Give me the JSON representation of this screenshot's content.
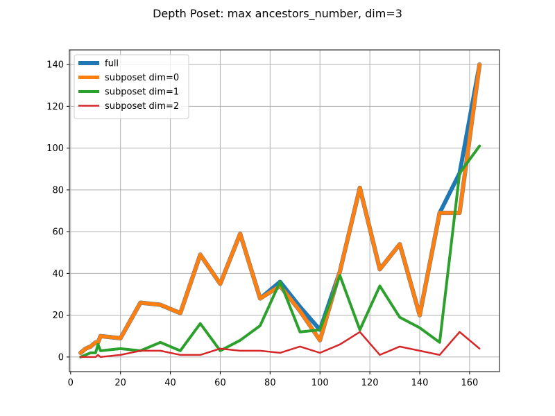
{
  "chart_data": {
    "type": "line",
    "title": "Depth Poset: max ancestors_number, dim=3",
    "xlabel": "",
    "ylabel": "",
    "xlim": [
      -0.5,
      172
    ],
    "ylim": [
      -7,
      147
    ],
    "xticks": [
      0,
      20,
      40,
      60,
      80,
      100,
      120,
      140,
      160
    ],
    "yticks": [
      0,
      20,
      40,
      60,
      80,
      100,
      120,
      140
    ],
    "grid": true,
    "legend_position": "top-left",
    "series": [
      {
        "name": "full",
        "color": "#1f77b4",
        "x": [
          4,
          6,
          8,
          10,
          11,
          12,
          20,
          28,
          36,
          44,
          52,
          60,
          68,
          76,
          84,
          92,
          100,
          108,
          116,
          124,
          132,
          140,
          148,
          156,
          164
        ],
        "y": [
          2,
          4,
          5,
          7,
          7,
          10,
          9,
          26,
          25,
          21,
          49,
          35,
          59,
          28,
          36,
          24,
          13,
          41,
          81,
          42,
          54,
          20,
          69,
          88,
          140
        ]
      },
      {
        "name": "subposet dim=0",
        "color": "#ff7f0e",
        "x": [
          4,
          6,
          8,
          10,
          11,
          12,
          20,
          28,
          36,
          44,
          52,
          60,
          68,
          76,
          84,
          92,
          100,
          108,
          116,
          124,
          132,
          140,
          148,
          156,
          164
        ],
        "y": [
          2,
          4,
          5,
          7,
          7,
          10,
          9,
          26,
          25,
          21,
          49,
          35,
          59,
          28,
          34,
          22,
          8,
          41,
          81,
          42,
          54,
          20,
          69,
          69,
          140
        ]
      },
      {
        "name": "subposet dim=1",
        "color": "#2ca02c",
        "x": [
          4,
          6,
          8,
          10,
          11,
          12,
          20,
          28,
          36,
          44,
          52,
          60,
          68,
          76,
          84,
          92,
          100,
          108,
          116,
          124,
          132,
          140,
          148,
          156,
          164
        ],
        "y": [
          0,
          1,
          2,
          2,
          6,
          3,
          4,
          3,
          7,
          3,
          16,
          3,
          8,
          15,
          36,
          12,
          13,
          39,
          13,
          34,
          19,
          14,
          7,
          88,
          101
        ]
      },
      {
        "name": "subposet dim=2",
        "color": "#d62728",
        "x": [
          4,
          6,
          8,
          10,
          11,
          12,
          20,
          28,
          36,
          44,
          52,
          60,
          68,
          76,
          84,
          92,
          100,
          108,
          116,
          124,
          132,
          140,
          148,
          156,
          164
        ],
        "y": [
          0,
          0,
          0,
          0,
          1,
          0,
          1,
          3,
          3,
          1,
          1,
          4,
          3,
          3,
          2,
          5,
          2,
          6,
          12,
          1,
          5,
          3,
          1,
          12,
          4
        ]
      }
    ]
  }
}
